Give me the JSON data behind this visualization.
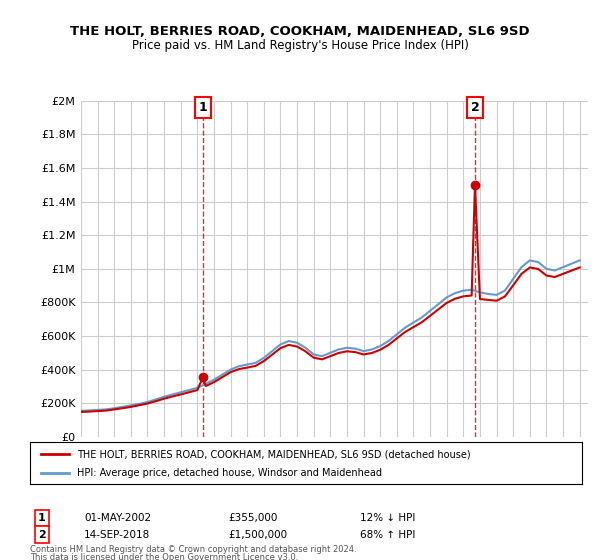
{
  "title": "THE HOLT, BERRIES ROAD, COOKHAM, MAIDENHEAD, SL6 9SD",
  "subtitle": "Price paid vs. HM Land Registry's House Price Index (HPI)",
  "legend_line1": "THE HOLT, BERRIES ROAD, COOKHAM, MAIDENHEAD, SL6 9SD (detached house)",
  "legend_line2": "HPI: Average price, detached house, Windsor and Maidenhead",
  "footer1": "Contains HM Land Registry data © Crown copyright and database right 2024.",
  "footer2": "This data is licensed under the Open Government Licence v3.0.",
  "annotation1_label": "1",
  "annotation1_date": "01-MAY-2002",
  "annotation1_price": "£355,000",
  "annotation1_hpi": "12% ↓ HPI",
  "annotation2_label": "2",
  "annotation2_date": "14-SEP-2018",
  "annotation2_price": "£1,500,000",
  "annotation2_hpi": "68% ↑ HPI",
  "hpi_color": "#6699cc",
  "price_color": "#cc0000",
  "background_color": "#ffffff",
  "grid_color": "#cccccc",
  "ylim": [
    0,
    2000000
  ],
  "yticks": [
    0,
    200000,
    400000,
    600000,
    800000,
    1000000,
    1200000,
    1400000,
    1600000,
    1800000,
    2000000
  ],
  "xlim_start": 1995.0,
  "xlim_end": 2025.5,
  "sale1_x": 2002.33,
  "sale1_y": 355000,
  "sale2_x": 2018.7,
  "sale2_y": 1500000,
  "hpi_x": [
    1995,
    1995.5,
    1996,
    1996.5,
    1997,
    1997.5,
    1998,
    1998.5,
    1999,
    1999.5,
    2000,
    2000.5,
    2001,
    2001.5,
    2002,
    2002.5,
    2003,
    2003.5,
    2004,
    2004.5,
    2005,
    2005.5,
    2006,
    2006.5,
    2007,
    2007.5,
    2008,
    2008.5,
    2009,
    2009.5,
    2010,
    2010.5,
    2011,
    2011.5,
    2012,
    2012.5,
    2013,
    2013.5,
    2014,
    2014.5,
    2015,
    2015.5,
    2016,
    2016.5,
    2017,
    2017.5,
    2018,
    2018.5,
    2019,
    2019.5,
    2020,
    2020.5,
    2021,
    2021.5,
    2022,
    2022.5,
    2023,
    2023.5,
    2024,
    2024.5,
    2025
  ],
  "hpi_y": [
    155000,
    157000,
    160000,
    163000,
    170000,
    178000,
    187000,
    196000,
    207000,
    222000,
    238000,
    252000,
    265000,
    278000,
    292000,
    315000,
    340000,
    370000,
    400000,
    420000,
    430000,
    440000,
    470000,
    510000,
    550000,
    570000,
    560000,
    530000,
    490000,
    480000,
    500000,
    520000,
    530000,
    525000,
    510000,
    520000,
    540000,
    570000,
    610000,
    650000,
    680000,
    710000,
    750000,
    790000,
    830000,
    855000,
    870000,
    875000,
    860000,
    850000,
    845000,
    870000,
    940000,
    1010000,
    1050000,
    1040000,
    1000000,
    990000,
    1010000,
    1030000,
    1050000
  ],
  "red_x": [
    1995,
    1995.5,
    1996,
    1996.5,
    1997,
    1997.5,
    1998,
    1998.5,
    1999,
    1999.5,
    2000,
    2000.5,
    2001,
    2001.5,
    2002,
    2002.33,
    2002.5,
    2003,
    2003.5,
    2004,
    2004.5,
    2005,
    2005.5,
    2006,
    2006.5,
    2007,
    2007.5,
    2008,
    2008.5,
    2009,
    2009.5,
    2010,
    2010.5,
    2011,
    2011.5,
    2012,
    2012.5,
    2013,
    2013.5,
    2014,
    2014.5,
    2015,
    2015.5,
    2016,
    2016.5,
    2017,
    2017.5,
    2018,
    2018.5,
    2018.7,
    2019,
    2019.5,
    2020,
    2020.5,
    2021,
    2021.5,
    2022,
    2022.5,
    2023,
    2023.5,
    2024,
    2024.5,
    2025
  ],
  "red_y": [
    148000,
    150000,
    153000,
    156000,
    163000,
    170000,
    178000,
    188000,
    198000,
    212000,
    227000,
    240000,
    252000,
    265000,
    278000,
    355000,
    302000,
    325000,
    355000,
    385000,
    403000,
    412000,
    422000,
    451000,
    489000,
    528000,
    547000,
    537000,
    509000,
    471000,
    461000,
    480000,
    499000,
    509000,
    504000,
    490000,
    499000,
    518000,
    547000,
    586000,
    624000,
    653000,
    682000,
    720000,
    759000,
    797000,
    822000,
    836000,
    841000,
    1500000,
    820000,
    815000,
    810000,
    835000,
    902000,
    970000,
    1008000,
    999000,
    960000,
    951000,
    970000,
    989000,
    1008000
  ]
}
